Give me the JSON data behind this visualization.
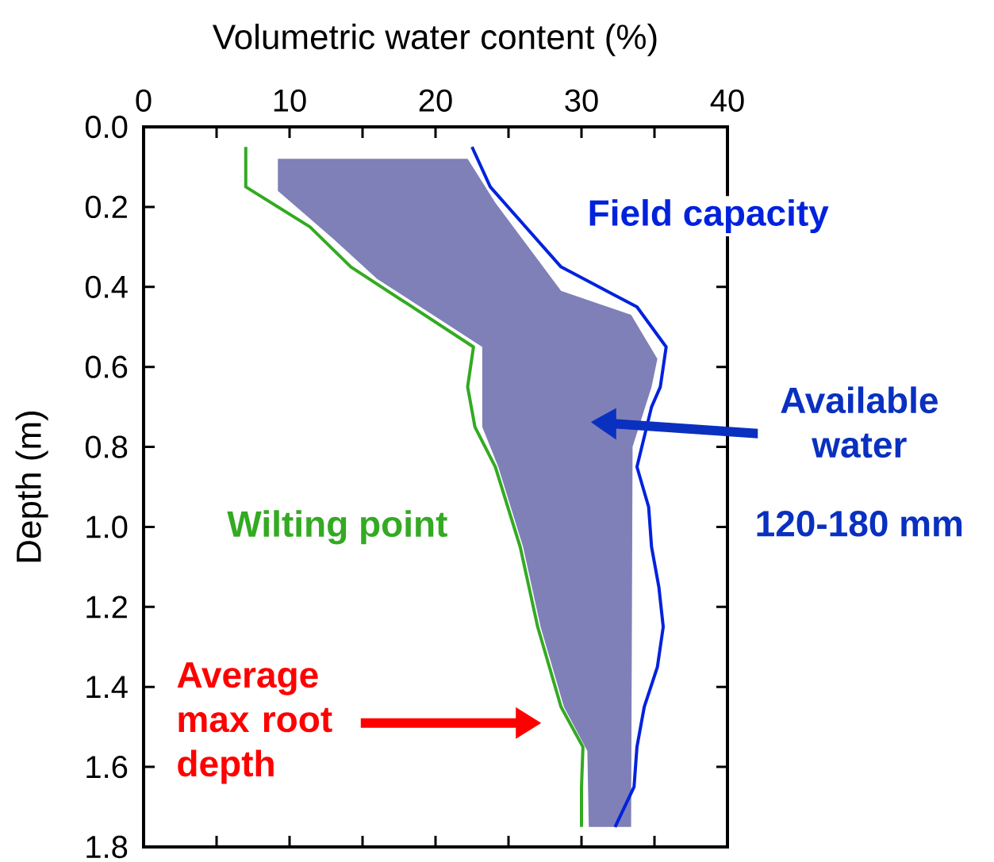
{
  "chart_data": {
    "type": "line",
    "xlabel": "Volumetric water content (%)",
    "ylabel": "Depth (m)",
    "xlim": [
      0,
      40
    ],
    "ylim": [
      1.8,
      0.0
    ],
    "xticks": [
      0,
      {
        "value": 5,
        "label": null
      },
      10,
      {
        "value": 15,
        "label": null
      },
      20,
      {
        "value": 25,
        "label": null
      },
      30,
      {
        "value": 35,
        "label": null
      },
      40
    ],
    "yticks": [
      {
        "value": 0,
        "label": "0.0"
      },
      0.2,
      0.4,
      0.6,
      0.8,
      {
        "value": 1,
        "label": "1.0"
      },
      1.2,
      1.4,
      1.6,
      1.8
    ],
    "marker": "none",
    "line_style": "solid",
    "series": [
      {
        "type": "area",
        "color": "#8080b8",
        "x": [
          9.2,
          22.2,
          24.1,
          28.6,
          33.4,
          35.2,
          34.8,
          33.5,
          33.4,
          30.5,
          30.4,
          28.8,
          27.2,
          26.0,
          24.3,
          23.2,
          23.2,
          16.0,
          13.0,
          9.2
        ],
        "values": [
          0.08,
          0.08,
          0.19,
          0.41,
          0.47,
          0.58,
          0.65,
          0.8,
          1.75,
          1.75,
          1.56,
          1.45,
          1.25,
          1.05,
          0.85,
          0.75,
          0.55,
          0.38,
          0.28,
          0.16
        ]
      },
      {
        "name": "Field capacity",
        "color": "#0022dd",
        "x": [
          22.5,
          23.75,
          28.6,
          33.8,
          35.8,
          35.4,
          34.8,
          33.8,
          34.6,
          34.8,
          35.3,
          35.6,
          35.2,
          34.3,
          33.8,
          33.6,
          32.3
        ],
        "values": [
          0.05,
          0.15,
          0.35,
          0.45,
          0.55,
          0.65,
          0.7,
          0.85,
          0.95,
          1.05,
          1.15,
          1.25,
          1.35,
          1.45,
          1.55,
          1.65,
          1.75
        ]
      },
      {
        "name": "Wilting point",
        "color": "#33aa22",
        "x": [
          7.0,
          7.0,
          11.4,
          14.2,
          22.6,
          22.2,
          22.7,
          24.1,
          25.8,
          27.0,
          28.6,
          30.1,
          30.0,
          30.0
        ],
        "values": [
          0.05,
          0.15,
          0.25,
          0.35,
          0.55,
          0.65,
          0.75,
          0.85,
          1.05,
          1.25,
          1.45,
          1.55,
          1.65,
          1.75
        ]
      }
    ],
    "annotations": [
      "Available water",
      "120-180 mm",
      "Average max root depth"
    ]
  }
}
